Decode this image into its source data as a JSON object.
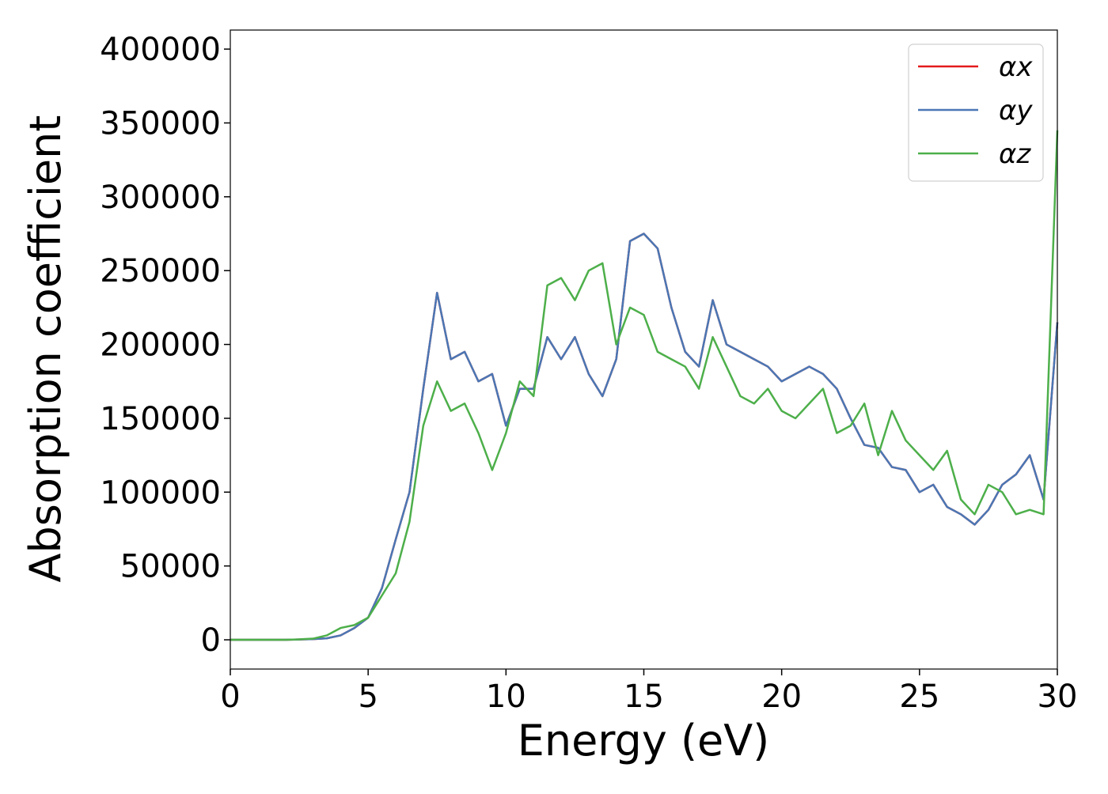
{
  "chart_data": {
    "type": "line",
    "x_label": "Energy (eV)",
    "y_label": "Absorption coefficient",
    "x": [
      0,
      0.5,
      1,
      1.5,
      2,
      2.5,
      3,
      3.5,
      4,
      4.5,
      5,
      5.5,
      6,
      6.5,
      7,
      7.5,
      8,
      8.5,
      9,
      9.5,
      10,
      10.5,
      11,
      11.5,
      12,
      12.5,
      13,
      13.5,
      14,
      14.5,
      15,
      15.5,
      16,
      16.5,
      17,
      17.5,
      18,
      18.5,
      19,
      19.5,
      20,
      20.5,
      21,
      21.5,
      22,
      22.5,
      23,
      23.5,
      24,
      24.5,
      25,
      25.5,
      26,
      26.5,
      27,
      27.5,
      28,
      28.5,
      29,
      29.5,
      30
    ],
    "series": [
      {
        "name": "αx",
        "color": "#e41a1c",
        "values": [
          0,
          0,
          0,
          0,
          0,
          200,
          500,
          1000,
          3000,
          8000,
          15000,
          35000,
          68000,
          100000,
          170000,
          235000,
          190000,
          195000,
          175000,
          180000,
          145000,
          170000,
          170000,
          205000,
          190000,
          205000,
          180000,
          165000,
          190000,
          270000,
          275000,
          265000,
          225000,
          195000,
          185000,
          230000,
          200000,
          195000,
          190000,
          185000,
          175000,
          180000,
          185000,
          180000,
          170000,
          150000,
          132000,
          130000,
          117000,
          115000,
          100000,
          105000,
          90000,
          85000,
          78000,
          88000,
          105000,
          112000,
          125000,
          95000,
          215000
        ]
      },
      {
        "name": "αy",
        "color": "#4a77b4",
        "values": [
          0,
          0,
          0,
          0,
          0,
          200,
          500,
          1000,
          3000,
          8000,
          15000,
          35000,
          68000,
          100000,
          170000,
          235000,
          190000,
          195000,
          175000,
          180000,
          145000,
          170000,
          170000,
          205000,
          190000,
          205000,
          180000,
          165000,
          190000,
          270000,
          275000,
          265000,
          225000,
          195000,
          185000,
          230000,
          200000,
          195000,
          190000,
          185000,
          175000,
          180000,
          185000,
          180000,
          170000,
          150000,
          132000,
          130000,
          117000,
          115000,
          100000,
          105000,
          90000,
          85000,
          78000,
          88000,
          105000,
          112000,
          125000,
          95000,
          215000
        ]
      },
      {
        "name": "αz",
        "color": "#4daf4a",
        "values": [
          0,
          0,
          0,
          0,
          0,
          300,
          800,
          3000,
          8000,
          10000,
          15000,
          30000,
          45000,
          80000,
          145000,
          175000,
          155000,
          160000,
          140000,
          115000,
          140000,
          175000,
          165000,
          240000,
          245000,
          230000,
          250000,
          255000,
          200000,
          225000,
          220000,
          195000,
          190000,
          185000,
          170000,
          205000,
          185000,
          165000,
          160000,
          170000,
          155000,
          150000,
          160000,
          170000,
          140000,
          145000,
          160000,
          125000,
          155000,
          135000,
          125000,
          115000,
          128000,
          95000,
          85000,
          105000,
          100000,
          85000,
          88000,
          85000,
          345000
        ]
      }
    ],
    "xlim": [
      0,
      30
    ],
    "xticks": [
      0,
      5,
      10,
      15,
      20,
      25,
      30
    ],
    "ylim": [
      -19800,
      412900
    ],
    "yticks": [
      0,
      50000,
      100000,
      150000,
      200000,
      250000,
      300000,
      350000,
      400000
    ],
    "legend": "upper right"
  }
}
